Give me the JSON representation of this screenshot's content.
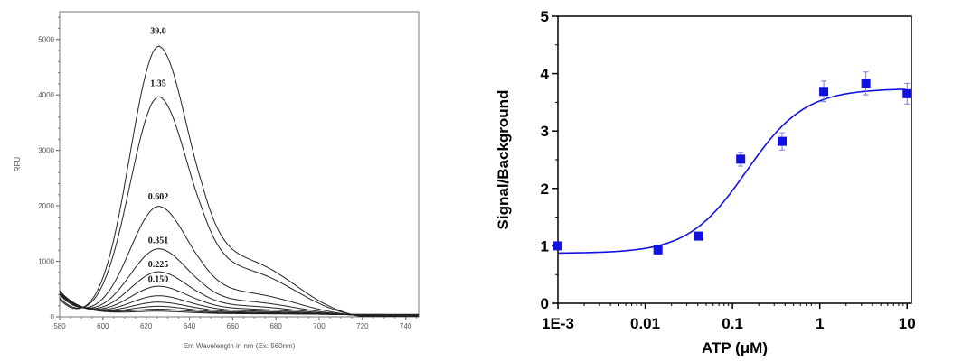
{
  "chart_data": [
    {
      "type": "line",
      "xlabel": "Em Wavelength in nm  (Ex: 560nm)",
      "ylabel": "RFU",
      "xlim": [
        580,
        746
      ],
      "ylim": [
        0,
        5500
      ],
      "xticks": [
        580,
        600,
        620,
        640,
        660,
        680,
        700,
        720,
        740
      ],
      "yticks": [
        0,
        1000,
        2000,
        3000,
        4000,
        5000
      ],
      "grid": false,
      "line_color": "#222222",
      "peak_wavelength": 626,
      "series": [
        {
          "label": "39.0",
          "peak_rfu": 5000
        },
        {
          "label": "1.35",
          "peak_rfu": 4060
        },
        {
          "label": "0.602",
          "peak_rfu": 2020
        },
        {
          "label": "0.351",
          "peak_rfu": 1230
        },
        {
          "label": "0.225",
          "peak_rfu": 800
        },
        {
          "label": "0.150",
          "peak_rfu": 530
        },
        {
          "label": "",
          "peak_rfu": 350
        },
        {
          "label": "",
          "peak_rfu": 230
        },
        {
          "label": "",
          "peak_rfu": 150
        },
        {
          "label": "",
          "peak_rfu": 95
        },
        {
          "label": "",
          "peak_rfu": 55
        }
      ]
    },
    {
      "type": "scatter",
      "xlabel": "ATP (μM)",
      "ylabel": "Signal/Background",
      "xscale": "log",
      "xlim": [
        0.001,
        11.2
      ],
      "ylim": [
        0,
        5
      ],
      "xticks": [
        {
          "v": 0.001,
          "label": "1E-3"
        },
        {
          "v": 0.01,
          "label": "0.01"
        },
        {
          "v": 0.1,
          "label": "0.1"
        },
        {
          "v": 1,
          "label": "1"
        },
        {
          "v": 10,
          "label": "10"
        }
      ],
      "yticks": [
        0,
        1,
        2,
        3,
        4,
        5
      ],
      "grid": false,
      "color": "#1010e0",
      "points": [
        {
          "x": 0.001,
          "y": 1.0,
          "err": 0
        },
        {
          "x": 0.014,
          "y": 0.93,
          "err": 0.03
        },
        {
          "x": 0.041,
          "y": 1.17,
          "err": 0.03
        },
        {
          "x": 0.124,
          "y": 2.51,
          "err": 0.12
        },
        {
          "x": 0.37,
          "y": 2.82,
          "err": 0.15
        },
        {
          "x": 1.11,
          "y": 3.69,
          "err": 0.18
        },
        {
          "x": 3.37,
          "y": 3.83,
          "err": 0.2
        },
        {
          "x": 10,
          "y": 3.65,
          "err": 0.18
        }
      ],
      "fit": {
        "model": "sigmoidal dose-response",
        "bottom": 0.87,
        "top": 3.74,
        "ec50": 0.145,
        "hill": 1.3
      }
    }
  ]
}
